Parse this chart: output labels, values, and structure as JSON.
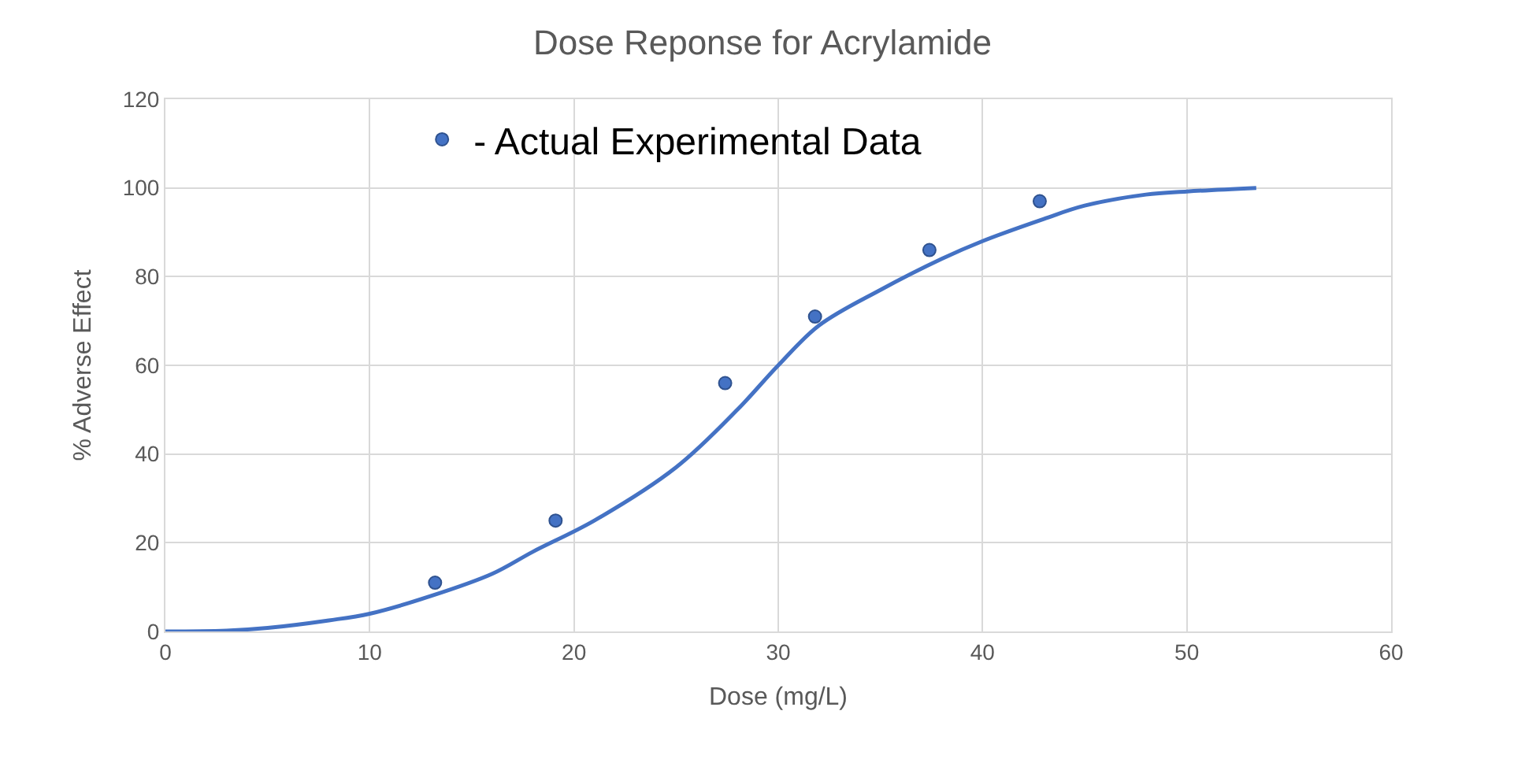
{
  "chart_data": {
    "type": "scatter",
    "title": "Dose Reponse for Acrylamide",
    "xlabel": "Dose (mg/L)",
    "ylabel": "% Adverse Effect",
    "xlim": [
      0,
      60
    ],
    "xticks": [
      0,
      10,
      20,
      30,
      40,
      50,
      60
    ],
    "ylim": [
      0,
      120
    ],
    "yticks": [
      0,
      20,
      40,
      60,
      80,
      100,
      120
    ],
    "grid": true,
    "legend": "top left",
    "line_style": "solid",
    "series": [
      {
        "type": "line",
        "color": "#4472c4",
        "x": [
          0,
          3,
          5,
          8,
          10,
          13,
          16,
          18,
          21,
          25,
          28,
          30,
          32,
          35,
          38,
          40,
          43,
          45,
          48,
          50,
          53.4
        ],
        "values": [
          0,
          0.2,
          0.8,
          2.5,
          4,
          8,
          13,
          18,
          25,
          37,
          50,
          60,
          69,
          77,
          84,
          88,
          93,
          96,
          98.5,
          99.2,
          100
        ]
      },
      {
        "marker": "circle",
        "name": "- Actual Experimental Data",
        "color": "#4472c4",
        "x": [
          13.2,
          19.1,
          27.4,
          31.8,
          37.4,
          42.8
        ],
        "values": [
          11,
          25,
          56,
          71,
          86,
          97
        ]
      }
    ]
  }
}
